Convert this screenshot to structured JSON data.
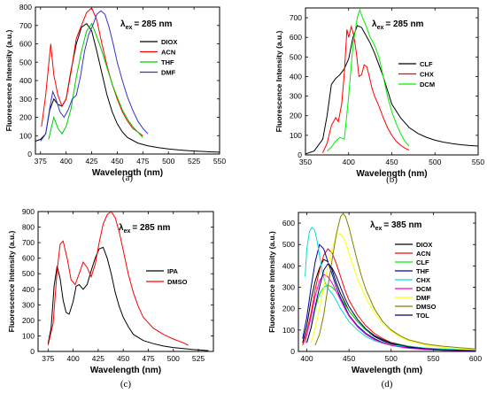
{
  "chart_data": [
    {
      "id": "a",
      "type": "line",
      "caption": "(a)",
      "excitation": {
        "prefix": "λ",
        "sub": "ex",
        "suffix": "= 285 nm"
      },
      "xlabel": "Wavelength (nm)",
      "ylabel": "Fluorescence Intensity (a.u.)",
      "xlim": [
        370,
        550
      ],
      "ylim": [
        0,
        800
      ],
      "xticks": [
        375,
        400,
        425,
        450,
        475,
        500,
        525,
        550
      ],
      "yticks": [
        0,
        100,
        200,
        300,
        400,
        500,
        600,
        700,
        800
      ],
      "legend_position": "right",
      "series": [
        {
          "name": "DIOX",
          "color": "#000000",
          "x": [
            370,
            375,
            380,
            384,
            388,
            392,
            396,
            400,
            405,
            410,
            415,
            420,
            425,
            430,
            435,
            440,
            445,
            450,
            455,
            460,
            470,
            480,
            490,
            500,
            510,
            520,
            530,
            540,
            550
          ],
          "y": [
            70,
            80,
            110,
            240,
            300,
            270,
            260,
            300,
            460,
            600,
            690,
            710,
            670,
            560,
            440,
            320,
            230,
            165,
            120,
            90,
            60,
            45,
            35,
            28,
            22,
            18,
            15,
            12,
            10
          ]
        },
        {
          "name": "ACN",
          "color": "#ff0000",
          "x": [
            376,
            380,
            385,
            388,
            392,
            396,
            400,
            405,
            410,
            415,
            420,
            425,
            430,
            435,
            440,
            445,
            450,
            455,
            460,
            465,
            470,
            475
          ],
          "y": [
            150,
            320,
            600,
            430,
            320,
            260,
            300,
            450,
            630,
            700,
            770,
            795,
            730,
            600,
            480,
            380,
            300,
            230,
            180,
            140,
            120,
            100
          ]
        },
        {
          "name": "THF",
          "color": "#00cc00",
          "x": [
            383,
            385,
            388,
            392,
            396,
            400,
            405,
            410,
            415,
            420,
            425,
            430,
            435,
            440,
            445,
            450,
            455,
            460,
            465,
            470,
            475
          ],
          "y": [
            80,
            130,
            200,
            140,
            110,
            150,
            250,
            420,
            560,
            670,
            710,
            640,
            560,
            470,
            380,
            310,
            240,
            190,
            150,
            120,
            90
          ]
        },
        {
          "name": "DMF",
          "color": "#3333cc",
          "x": [
            375,
            380,
            384,
            387,
            390,
            394,
            398,
            402,
            406,
            410,
            414,
            418,
            422,
            426,
            430,
            434,
            438,
            442,
            446,
            450,
            455,
            460,
            465,
            470,
            475,
            480
          ],
          "y": [
            70,
            110,
            250,
            340,
            300,
            230,
            200,
            240,
            300,
            320,
            420,
            560,
            650,
            700,
            760,
            780,
            760,
            690,
            600,
            500,
            400,
            310,
            240,
            180,
            140,
            110
          ]
        }
      ]
    },
    {
      "id": "b",
      "type": "line",
      "caption": "(b)",
      "excitation": {
        "prefix": "λ",
        "sub": "ex",
        "suffix": "= 285 nm"
      },
      "xlabel": "Wavelength (nm)",
      "ylabel": "Fluorescence Intensity (a.u.)",
      "xlim": [
        350,
        550
      ],
      "ylim": [
        0,
        750
      ],
      "xticks": [
        350,
        400,
        450,
        500,
        550
      ],
      "yticks": [
        0,
        100,
        200,
        300,
        400,
        500,
        600,
        700
      ],
      "legend_position": "right",
      "series": [
        {
          "name": "CLF",
          "color": "#000000",
          "x": [
            350,
            360,
            370,
            375,
            380,
            385,
            390,
            395,
            400,
            405,
            410,
            415,
            420,
            425,
            430,
            435,
            440,
            445,
            450,
            460,
            470,
            480,
            490,
            500,
            510,
            520,
            530,
            540,
            550
          ],
          "y": [
            5,
            20,
            80,
            200,
            360,
            390,
            410,
            440,
            490,
            600,
            660,
            650,
            610,
            570,
            520,
            460,
            400,
            330,
            260,
            190,
            140,
            110,
            90,
            75,
            65,
            58,
            52,
            48,
            45
          ]
        },
        {
          "name": "CHX",
          "color": "#ff0000",
          "x": [
            370,
            375,
            380,
            385,
            388,
            392,
            395,
            398,
            400,
            403,
            406,
            409,
            412,
            415,
            418,
            421,
            424,
            427,
            430,
            435,
            440,
            445,
            450,
            455,
            460,
            465,
            470
          ],
          "y": [
            10,
            60,
            150,
            190,
            170,
            260,
            420,
            640,
            600,
            655,
            610,
            520,
            400,
            410,
            460,
            450,
            400,
            340,
            300,
            250,
            190,
            140,
            100,
            70,
            50,
            35,
            25
          ]
        },
        {
          "name": "DCM",
          "color": "#00ee00",
          "x": [
            375,
            380,
            385,
            390,
            395,
            400,
            405,
            410,
            413,
            416,
            420,
            425,
            430,
            435,
            440,
            445,
            450,
            455,
            460,
            465,
            470
          ],
          "y": [
            20,
            40,
            70,
            90,
            80,
            300,
            560,
            700,
            740,
            700,
            660,
            600,
            560,
            500,
            400,
            300,
            220,
            160,
            110,
            70,
            45
          ]
        }
      ]
    },
    {
      "id": "c",
      "type": "line",
      "caption": "(c)",
      "excitation": {
        "prefix": "λ",
        "sub": "ex",
        "suffix": "= 285 nm"
      },
      "xlabel": "Wavelength (nm)",
      "ylabel": "Fluorescence Intensity (a.u.)",
      "xlim": [
        365,
        540
      ],
      "ylim": [
        0,
        900
      ],
      "xticks": [
        375,
        400,
        425,
        450,
        475,
        500,
        525
      ],
      "yticks": [
        0,
        100,
        200,
        300,
        400,
        500,
        600,
        700,
        800,
        900
      ],
      "legend_position": "right",
      "series": [
        {
          "name": "IPA",
          "color": "#000000",
          "x": [
            375,
            378,
            381,
            384,
            387,
            390,
            393,
            396,
            400,
            403,
            406,
            410,
            414,
            418,
            422,
            426,
            430,
            434,
            438,
            442,
            446,
            450,
            455,
            460,
            470,
            480,
            490,
            500,
            510,
            520,
            530,
            535
          ],
          "y": [
            50,
            150,
            420,
            550,
            470,
            330,
            250,
            240,
            320,
            420,
            430,
            400,
            430,
            520,
            600,
            660,
            670,
            600,
            500,
            380,
            290,
            220,
            160,
            110,
            70,
            50,
            35,
            25,
            18,
            12,
            8,
            5
          ]
        },
        {
          "name": "DMSO",
          "color": "#ff0000",
          "x": [
            375,
            380,
            384,
            387,
            390,
            394,
            398,
            402,
            406,
            410,
            414,
            418,
            422,
            426,
            430,
            434,
            438,
            442,
            446,
            450,
            455,
            460,
            465,
            470,
            480,
            490,
            500,
            510,
            515
          ],
          "y": [
            40,
            180,
            520,
            690,
            710,
            600,
            460,
            430,
            500,
            575,
            540,
            480,
            560,
            700,
            820,
            880,
            900,
            860,
            770,
            650,
            500,
            380,
            290,
            220,
            150,
            110,
            80,
            55,
            40
          ]
        }
      ]
    },
    {
      "id": "d",
      "type": "line",
      "caption": "(d)",
      "excitation": {
        "prefix": "λ",
        "sub": "ex",
        "suffix": "= 385 nm"
      },
      "xlabel": "Wavelength (nm)",
      "ylabel": "Fluorescence Intensity (a.u.)",
      "xlim": [
        390,
        600
      ],
      "ylim": [
        0,
        650
      ],
      "xticks": [
        400,
        450,
        500,
        550,
        600
      ],
      "yticks": [
        0,
        100,
        200,
        300,
        400,
        500,
        600
      ],
      "legend_position": "right",
      "series": [
        {
          "name": "DIOX",
          "color": "#000000",
          "x": [
            395,
            400,
            405,
            410,
            415,
            420,
            425,
            430,
            435,
            440,
            445,
            450,
            460,
            470,
            480,
            490,
            500,
            520,
            540,
            560,
            580,
            600
          ],
          "y": [
            40,
            120,
            240,
            330,
            390,
            430,
            420,
            380,
            320,
            270,
            230,
            190,
            140,
            100,
            70,
            50,
            35,
            20,
            12,
            8,
            5,
            3
          ]
        },
        {
          "name": "ACN",
          "color": "#ff0000",
          "x": [
            395,
            400,
            405,
            410,
            415,
            420,
            425,
            430,
            435,
            440,
            445,
            450,
            460,
            470,
            480,
            490,
            500,
            520,
            540,
            560,
            580,
            600
          ],
          "y": [
            30,
            90,
            180,
            290,
            380,
            450,
            480,
            460,
            410,
            350,
            290,
            240,
            170,
            120,
            85,
            60,
            42,
            25,
            15,
            10,
            6,
            4
          ]
        },
        {
          "name": "CLF",
          "color": "#00ee00",
          "x": [
            400,
            405,
            410,
            415,
            420,
            425,
            430,
            435,
            440,
            445,
            450,
            460,
            470,
            480,
            490,
            500,
            520,
            540,
            560,
            580,
            600
          ],
          "y": [
            40,
            110,
            200,
            270,
            300,
            310,
            300,
            280,
            250,
            220,
            190,
            140,
            100,
            75,
            55,
            40,
            25,
            15,
            10,
            6,
            4
          ]
        },
        {
          "name": "THF",
          "color": "#0000aa",
          "x": [
            395,
            400,
            405,
            410,
            415,
            420,
            425,
            430,
            435,
            440,
            445,
            450,
            460,
            470,
            480,
            490,
            500,
            520,
            540,
            560,
            580,
            600
          ],
          "y": [
            60,
            160,
            300,
            420,
            500,
            480,
            420,
            360,
            300,
            250,
            210,
            170,
            120,
            85,
            60,
            42,
            30,
            18,
            10,
            6,
            4,
            2
          ]
        },
        {
          "name": "CHX",
          "color": "#00dddd",
          "x": [
            398,
            400,
            403,
            406,
            409,
            412,
            415,
            418,
            421,
            424,
            428,
            432,
            436,
            440,
            445,
            450,
            460,
            470,
            480,
            490,
            500,
            520,
            540,
            560,
            580,
            600
          ],
          "y": [
            350,
            480,
            560,
            580,
            570,
            520,
            450,
            380,
            330,
            300,
            280,
            260,
            230,
            200,
            170,
            140,
            100,
            70,
            50,
            38,
            30,
            22,
            16,
            12,
            9,
            7
          ]
        },
        {
          "name": "DCM",
          "color": "#ff00cc",
          "x": [
            398,
            400,
            405,
            410,
            415,
            420,
            425,
            430,
            435,
            440,
            445,
            450,
            460,
            470,
            480,
            490,
            500,
            520,
            540,
            560,
            580,
            600
          ],
          "y": [
            40,
            80,
            160,
            260,
            330,
            360,
            350,
            320,
            280,
            240,
            200,
            165,
            115,
            80,
            55,
            40,
            28,
            15,
            9,
            6,
            4,
            3
          ]
        },
        {
          "name": "DMF",
          "color": "#ffff00",
          "x": [
            405,
            410,
            415,
            420,
            425,
            430,
            435,
            440,
            445,
            450,
            455,
            460,
            470,
            480,
            490,
            500,
            510,
            520,
            540,
            560,
            580,
            600
          ],
          "y": [
            40,
            110,
            200,
            300,
            400,
            480,
            540,
            550,
            520,
            460,
            400,
            340,
            250,
            180,
            130,
            95,
            70,
            50,
            30,
            20,
            12,
            8
          ]
        },
        {
          "name": "DMSO",
          "color": "#808000",
          "x": [
            410,
            415,
            420,
            425,
            430,
            435,
            440,
            443,
            446,
            450,
            455,
            460,
            465,
            470,
            480,
            490,
            500,
            510,
            520,
            540,
            560,
            580,
            600
          ],
          "y": [
            30,
            80,
            170,
            300,
            430,
            550,
            630,
            645,
            630,
            580,
            500,
            420,
            350,
            290,
            200,
            140,
            100,
            75,
            55,
            35,
            25,
            18,
            12
          ]
        },
        {
          "name": "TOL",
          "color": "#000066",
          "x": [
            400,
            405,
            410,
            415,
            420,
            425,
            430,
            435,
            440,
            445,
            450,
            460,
            470,
            480,
            490,
            500,
            520,
            540,
            560,
            580,
            600
          ],
          "y": [
            40,
            110,
            210,
            300,
            380,
            410,
            390,
            350,
            300,
            250,
            210,
            150,
            105,
            75,
            55,
            40,
            22,
            13,
            8,
            5,
            3
          ]
        }
      ]
    }
  ]
}
